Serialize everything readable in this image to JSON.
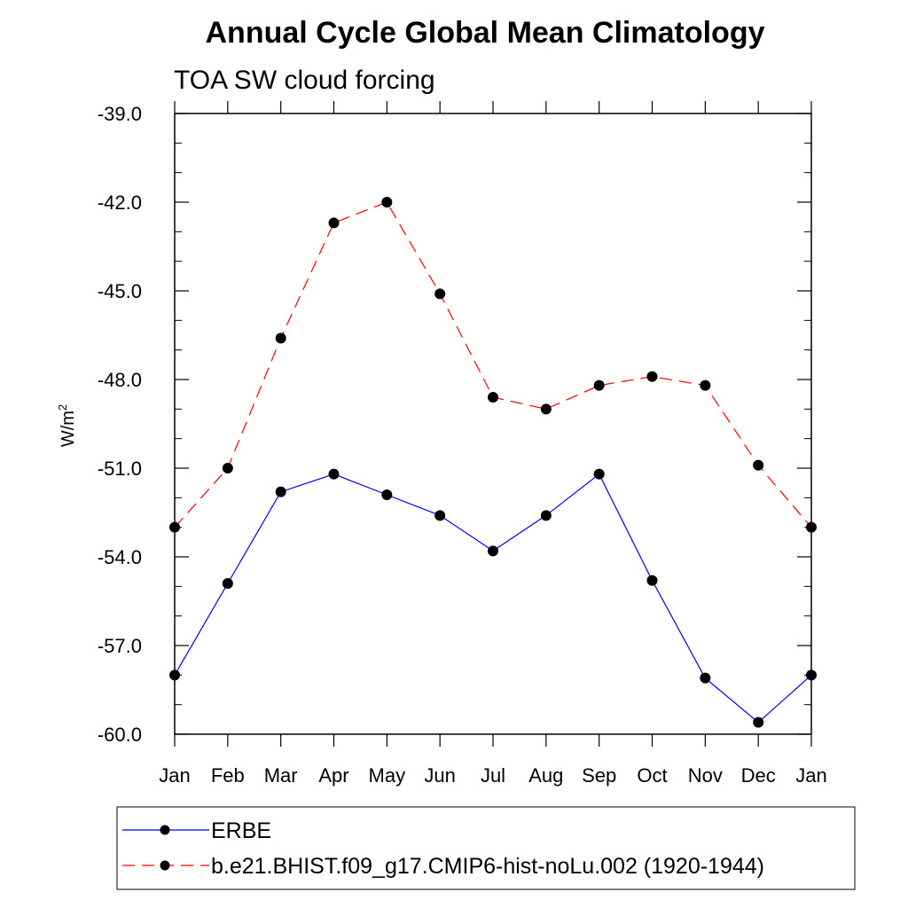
{
  "chart_data": {
    "type": "line",
    "title": "Annual Cycle Global Mean Climatology",
    "subtitle": "TOA SW cloud forcing",
    "ylabel": "W/m",
    "ylabel_sup": "2",
    "xlabel": "",
    "categories": [
      "Jan",
      "Feb",
      "Mar",
      "Apr",
      "May",
      "Jun",
      "Jul",
      "Aug",
      "Sep",
      "Oct",
      "Nov",
      "Dec",
      "Jan"
    ],
    "ylim": [
      -60.0,
      -39.0
    ],
    "yticks": [
      "-39.0",
      "-42.0",
      "-45.0",
      "-48.0",
      "-51.0",
      "-54.0",
      "-57.0",
      "-60.0"
    ],
    "grid": false,
    "legend_position": "bottom",
    "series": [
      {
        "name": "ERBE",
        "color": "#0000ff",
        "dash": "solid",
        "marker": "circle",
        "values": [
          -58.0,
          -54.9,
          -51.8,
          -51.2,
          -51.9,
          -52.6,
          -53.8,
          -52.6,
          -51.2,
          -54.8,
          -58.1,
          -59.6,
          -58.0
        ]
      },
      {
        "name": "b.e21.BHIST.f09_g17.CMIP6-hist-noLu.002 (1920-1944)",
        "color": "#ff0000",
        "dash": "dashed",
        "marker": "circle",
        "values": [
          -53.0,
          -51.0,
          -46.6,
          -42.7,
          -42.0,
          -45.1,
          -48.6,
          -49.0,
          -48.2,
          -47.9,
          -48.2,
          -50.9,
          -53.0
        ]
      }
    ]
  }
}
